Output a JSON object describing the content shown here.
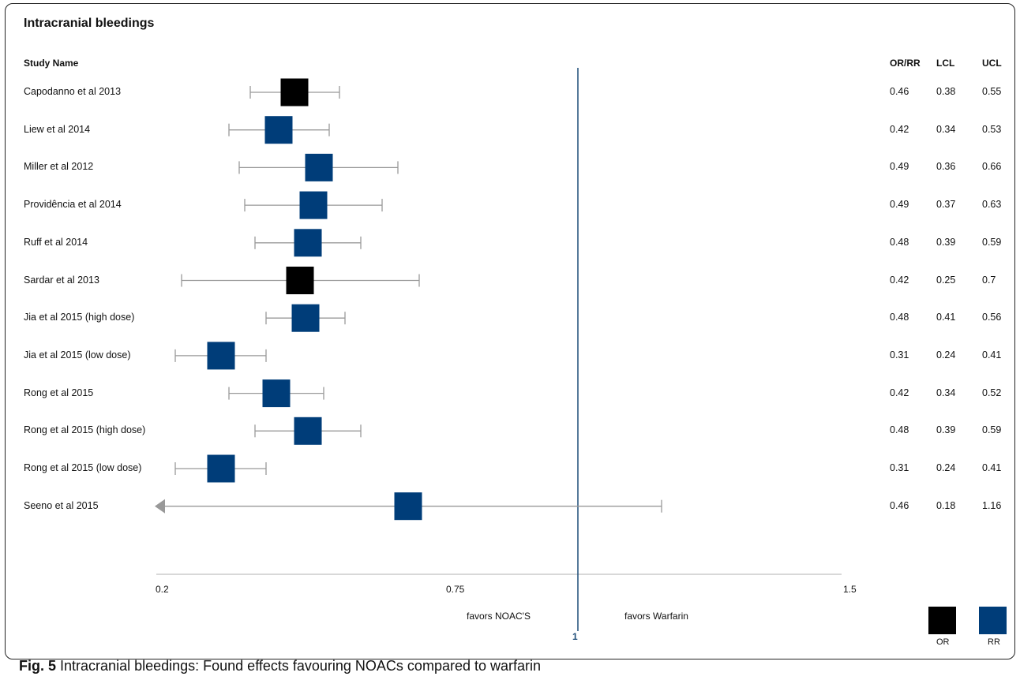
{
  "title": "Intracranial bleedings",
  "columns": {
    "study": "Study Name",
    "or_rr": "OR/RR",
    "lcl": "LCL",
    "ucl": "UCL"
  },
  "colors": {
    "OR": "#000000",
    "RR": "#003d79",
    "whisker": "#999999",
    "ref_line": "#1f4e79",
    "axis": "#cccccc"
  },
  "chart_data": {
    "type": "forest",
    "xlim": [
      0.2,
      1.5
    ],
    "x_ticks": [
      "0.2",
      "0.75",
      "1.5"
    ],
    "reference_line": {
      "value": 1,
      "label": "1"
    },
    "favors_left": "favors NOAC'S",
    "favors_right": "favors Warfarin",
    "legend": [
      {
        "label": "OR",
        "color": "#000000"
      },
      {
        "label": "RR",
        "color": "#003d79"
      }
    ],
    "studies": [
      {
        "name": "Capodanno et al 2013",
        "est": "0.46",
        "lcl": "0.38",
        "ucl": "0.55",
        "kind": "OR"
      },
      {
        "name": "Liew et al 2014",
        "est": "0.42",
        "lcl": "0.34",
        "ucl": "0.53",
        "kind": "RR"
      },
      {
        "name": "Miller et al 2012",
        "est": "0.49",
        "lcl": "0.36",
        "ucl": "0.66",
        "kind": "RR"
      },
      {
        "name": "Providência et al 2014",
        "est": "0.49",
        "lcl": "0.37",
        "ucl": "0.63",
        "kind": "RR"
      },
      {
        "name": "Ruff et al 2014",
        "est": "0.48",
        "lcl": "0.39",
        "ucl": "0.59",
        "kind": "RR"
      },
      {
        "name": "Sardar et al 2013",
        "est": "0.42",
        "lcl": "0.25",
        "ucl": "0.7",
        "kind": "OR"
      },
      {
        "name": "Jia et al 2015 (high dose)",
        "est": "0.48",
        "lcl": "0.41",
        "ucl": "0.56",
        "kind": "RR"
      },
      {
        "name": "Jia et al 2015 (low dose)",
        "est": "0.31",
        "lcl": "0.24",
        "ucl": "0.41",
        "kind": "RR"
      },
      {
        "name": "Rong et al 2015",
        "est": "0.42",
        "lcl": "0.34",
        "ucl": "0.52",
        "kind": "RR"
      },
      {
        "name": "Rong et al 2015 (high dose)",
        "est": "0.48",
        "lcl": "0.39",
        "ucl": "0.59",
        "kind": "RR"
      },
      {
        "name": "Rong et al 2015 (low dose)",
        "est": "0.31",
        "lcl": "0.24",
        "ucl": "0.41",
        "kind": "RR"
      },
      {
        "name": "Seeno et al 2015",
        "est": "0.46",
        "lcl": "0.18",
        "ucl": "1.16",
        "kind": "RR"
      }
    ]
  },
  "caption": {
    "label": "Fig. 5",
    "text": "Intracranial bleedings: Found effects favouring NOACs compared to warfarin"
  }
}
